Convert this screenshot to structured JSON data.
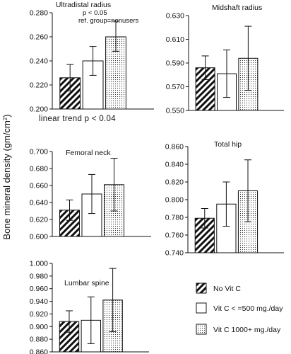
{
  "chart_data": {
    "type": "bar",
    "y_axis_label_main": "Bone mineral density (gm/cm",
    "y_axis_label_sup": "2",
    "y_axis_label_end": ")",
    "series": [
      {
        "name": "No Vit C",
        "pattern": "diagonal-stripes"
      },
      {
        "name": "Vit C < =500 mg./day",
        "pattern": "white"
      },
      {
        "name": "Vit C 1000+ mg./day",
        "pattern": "dots"
      }
    ],
    "panels": [
      {
        "title": "Ultradistal radius",
        "annotations": [
          "p < 0.05",
          "ref.  group=nonusers"
        ],
        "footer": "linear trend  p  <  0.04",
        "ylim": [
          0.2,
          0.28
        ],
        "ticks": [
          "0.200",
          "0.220",
          "0.240",
          "0.260",
          "0.280"
        ],
        "values": [
          0.226,
          0.24,
          0.26
        ],
        "err_low": [
          0.215,
          0.228,
          0.248
        ],
        "err_high": [
          0.237,
          0.252,
          0.273
        ]
      },
      {
        "title": "Midshaft radius",
        "annotations": [],
        "footer": "",
        "ylim": [
          0.55,
          0.63
        ],
        "ticks": [
          "0.550",
          "0.570",
          "0.590",
          "0.610",
          "0.630"
        ],
        "values": [
          0.586,
          0.581,
          0.594
        ],
        "err_low": [
          0.576,
          0.561,
          0.567
        ],
        "err_high": [
          0.596,
          0.601,
          0.621
        ]
      },
      {
        "title": "Femoral neck",
        "annotations": [],
        "footer": "",
        "ylim": [
          0.6,
          0.7
        ],
        "ticks": [
          "0.600",
          "0.620",
          "0.640",
          "0.660",
          "0.680",
          "0.700"
        ],
        "values": [
          0.631,
          0.65,
          0.661
        ],
        "err_low": [
          0.619,
          0.627,
          0.63
        ],
        "err_high": [
          0.643,
          0.673,
          0.692
        ]
      },
      {
        "title": "Total hip",
        "annotations": [],
        "footer": "",
        "ylim": [
          0.74,
          0.86
        ],
        "ticks": [
          "0.740",
          "0.760",
          "0.780",
          "0.800",
          "0.820",
          "0.840",
          "0.860"
        ],
        "values": [
          0.779,
          0.795,
          0.81
        ],
        "err_low": [
          0.768,
          0.77,
          0.775
        ],
        "err_high": [
          0.79,
          0.82,
          0.845
        ]
      },
      {
        "title": "Lumbar spine",
        "annotations": [],
        "footer": "",
        "ylim": [
          0.86,
          1.0
        ],
        "ticks": [
          "0.860",
          "0.880",
          "0.900",
          "0.920",
          "0.940",
          "0.960",
          "0.980",
          "1.000"
        ],
        "values": [
          0.908,
          0.91,
          0.942
        ],
        "err_low": [
          0.891,
          0.873,
          0.892
        ],
        "err_high": [
          0.925,
          0.947,
          0.992
        ]
      }
    ]
  }
}
